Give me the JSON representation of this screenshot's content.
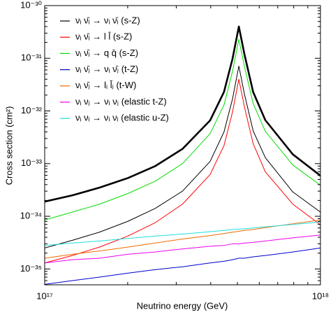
{
  "chart_data": {
    "type": "line",
    "x_label": "Neutrino energy (GeV)",
    "y_label": "Cross section (cm²)",
    "x_log": true,
    "y_log": true,
    "minor_ticks": true,
    "legend": "upper left",
    "xlim": [
      1e+17,
      1e+18
    ],
    "xticks": [
      {
        "value": 1e+17,
        "label": "10¹⁷"
      },
      {
        "value": 1e+18,
        "label": "10¹⁸"
      }
    ],
    "ylim": [
      5e-36,
      1e-30
    ],
    "yticks": [
      {
        "value": 1e-35,
        "label": "10⁻³⁵"
      },
      {
        "value": 1e-34,
        "label": "10⁻³⁴"
      },
      {
        "value": 1e-33,
        "label": "10⁻³³"
      },
      {
        "value": 1e-32,
        "label": "10⁻³²"
      },
      {
        "value": 1e-31,
        "label": "10⁻³¹"
      },
      {
        "value": 1e-30,
        "label": "10⁻³⁰"
      }
    ],
    "x": [
      1e+17,
      1.26e+17,
      1.58e+17,
      2e+17,
      2.51e+17,
      3.16e+17,
      3.98e+17,
      4.47e+17,
      4.8e+17,
      5.06e+17,
      5.3e+17,
      5.7e+17,
      6.31e+17,
      7.94e+17,
      1e+18
    ],
    "series": [
      {
        "color": "#000000",
        "linewidth": 2.6,
        "values": [
          1.9e-34,
          2.5e-34,
          3.5e-34,
          5.3e-34,
          8.9e-34,
          1.9e-33,
          6.6e-33,
          2.3e-32,
          9.8e-32,
          4e-31,
          1.2e-31,
          2.3e-32,
          6.7e-33,
          1.5e-33,
          5.9e-34
        ]
      },
      {
        "name": "νᵢ ν̄ᵢ → νᵢ ν̄ᵢ (s-Z)",
        "color": "#000000",
        "linewidth": 1,
        "values": [
          2.5e-35,
          3.5e-35,
          5e-35,
          8e-35,
          1.4e-34,
          3e-34,
          1.1e-33,
          4e-33,
          1.7e-32,
          7.1e-32,
          2.1e-32,
          4.2e-33,
          1.3e-33,
          2.9e-34,
          1.2e-34
        ]
      },
      {
        "name": "νᵢ ν̄ᵢ → l l̄ (s-Z)",
        "color": "#ff0000",
        "linewidth": 1,
        "values": [
          1.3e-35,
          1.8e-35,
          2.6e-35,
          4.2e-35,
          7.5e-35,
          1.7e-34,
          6.2e-34,
          2.2e-33,
          9.6e-33,
          4e-32,
          1.2e-32,
          2.4e-33,
          7e-34,
          1.7e-34,
          6.9e-35
        ]
      },
      {
        "name": "νᵢ ν̄ᵢ → q q̄ (s-Z)",
        "color": "#00dd00",
        "linewidth": 1,
        "values": [
          8.5e-35,
          1.2e-34,
          1.7e-34,
          2.7e-34,
          4.6e-34,
          1e-33,
          3.7e-33,
          1.3e-32,
          5.7e-32,
          2.3e-31,
          7e-32,
          1.4e-32,
          4.1e-33,
          9.4e-34,
          3.9e-34
        ]
      },
      {
        "name": "νᵢ ν̄ⱼ → νᵢ ν̄ⱼ (t-Z)",
        "color": "#0000cc",
        "linewidth": 1,
        "values": [
          5.1e-36,
          6e-36,
          7e-36,
          8.3e-36,
          9.7e-36,
          1.1e-35,
          1.3e-35,
          1.4e-35,
          1.5e-35,
          1.6e-35,
          1.6e-35,
          1.7e-35,
          1.8e-35,
          2.1e-35,
          2.5e-35
        ]
      },
      {
        "name": "νᵢ ν̄ⱼ → lᵢ l̄ⱼ (t-W)",
        "color": "#ee6a00",
        "linewidth": 1,
        "values": [
          1.6e-35,
          1.9e-35,
          2.2e-35,
          2.6e-35,
          3.1e-35,
          3.7e-35,
          4.3e-35,
          4.7e-35,
          5e-35,
          5.2e-35,
          5.4e-35,
          5.6e-35,
          6.1e-35,
          7.2e-35,
          8.5e-35
        ]
      },
      {
        "name": "νᵢ νⱼ → νᵢ νⱼ (elastic t-Z)",
        "color": "#ee00ee",
        "linewidth": 1,
        "values": [
          1.3e-35,
          1.5e-35,
          1.6e-35,
          1.9e-35,
          2.1e-35,
          2.4e-35,
          2.7e-35,
          2.8e-35,
          3e-35,
          3e-35,
          3.1e-35,
          3.2e-35,
          3.4e-35,
          3.9e-35,
          4.4e-35
        ]
      },
      {
        "name": "νᵢ νᵢ → νᵢ νᵢ (elastic u-Z)",
        "color": "#22dddd",
        "linewidth": 1,
        "values": [
          2.8e-35,
          3.1e-35,
          3.4e-35,
          3.8e-35,
          4.2e-35,
          4.6e-35,
          5.1e-35,
          5.4e-35,
          5.6e-35,
          5.7e-35,
          5.8e-35,
          6e-35,
          6.3e-35,
          7e-35,
          7.8e-35
        ]
      }
    ]
  }
}
